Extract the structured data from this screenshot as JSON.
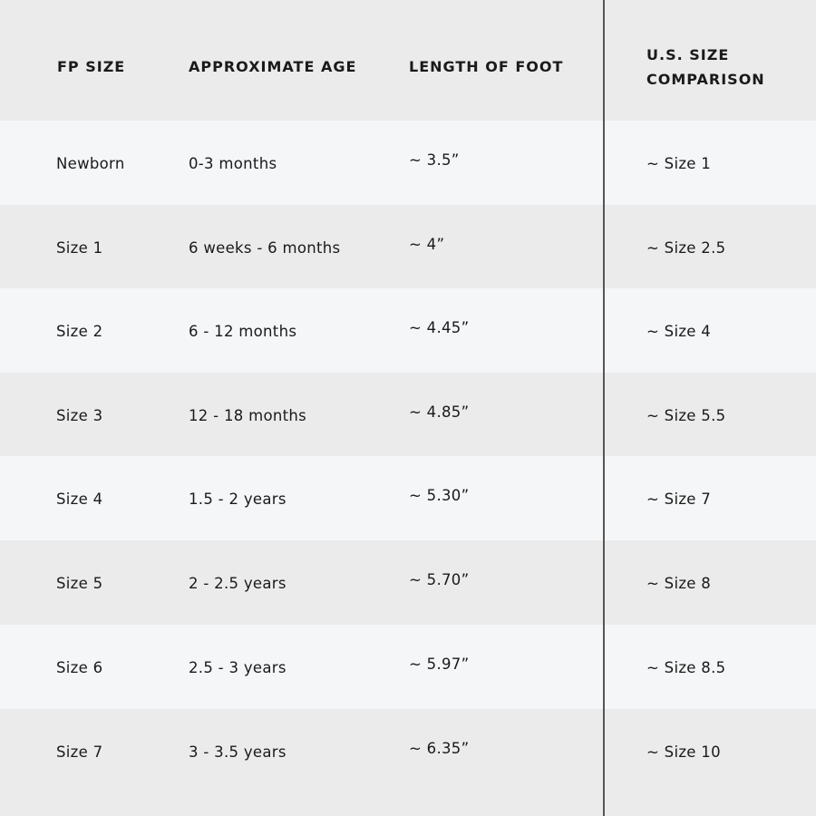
{
  "headers": [
    "FP SIZE",
    "APPROXIMATE AGE",
    "LENGTH OF FOOT",
    "U.S. SIZE",
    "COMPARISON"
  ],
  "rows": [
    {
      "fp_size": "Newborn",
      "age": "0-3 months",
      "length": "~ 3.5”",
      "us_size": "~ Size 1"
    },
    {
      "fp_size": "Size 1",
      "age": "6 weeks - 6 months",
      "length": "~ 4”",
      "us_size": "~ Size 2.5"
    },
    {
      "fp_size": "Size 2",
      "age": "6 - 12 months",
      "length": "~ 4.45”",
      "us_size": "~ Size 4"
    },
    {
      "fp_size": "Size 3",
      "age": "12 - 18 months",
      "length": "~ 4.85”",
      "us_size": "~ Size 5.5"
    },
    {
      "fp_size": "Size 4",
      "age": "1.5 - 2 years",
      "length": "~ 5.30”",
      "us_size": "~ Size 7"
    },
    {
      "fp_size": "Size 5",
      "age": "2 - 2.5 years",
      "length": "~ 5.70”",
      "us_size": "~ Size 8"
    },
    {
      "fp_size": "Size 6",
      "age": "2.5 - 3 years",
      "length": "~ 5.97”",
      "us_size": "~ Size 8.5"
    },
    {
      "fp_size": "Size 7",
      "age": "3 - 3.5 years",
      "length": "~ 6.35”",
      "us_size": "~ Size 10"
    }
  ],
  "colors": {
    "header_bg": "#ebebeb",
    "row_light": "#f5f6f8",
    "row_gray": "#ebebeb",
    "text": "#1a1a1a",
    "divider": "#555555"
  }
}
